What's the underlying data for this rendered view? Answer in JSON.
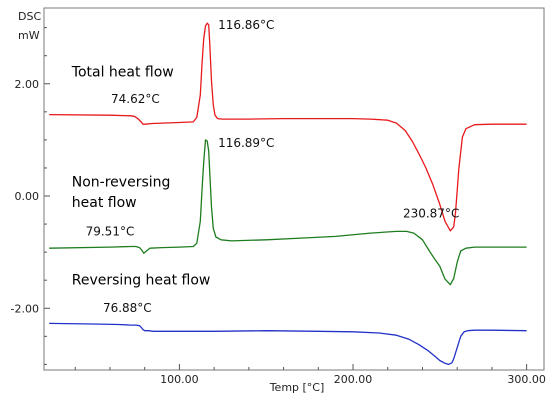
{
  "chart_data": {
    "type": "line",
    "y_unit_label": "DSC",
    "y_unit": "mW",
    "xlabel": "Temp  [°C]",
    "xlim": [
      22,
      310
    ],
    "ylim": [
      -3.1,
      3.35
    ],
    "xticks": [
      100,
      200,
      300
    ],
    "xtick_labels": [
      "100.00",
      "200.00",
      "300.00"
    ],
    "yticks": [
      2,
      0,
      -2
    ],
    "ytick_labels": [
      "2.00",
      "0.00",
      "-2.00"
    ],
    "grid": false,
    "series": [
      {
        "name": "Total heat flow",
        "color": "#e8191b",
        "x": [
          25,
          60,
          72,
          74,
          76,
          78,
          79,
          81,
          83,
          90,
          100,
          108,
          110,
          112,
          113,
          114,
          115,
          116,
          116.86,
          117.5,
          118.5,
          119.5,
          120.5,
          122,
          125,
          130,
          140,
          160,
          180,
          200,
          210,
          220,
          225,
          230,
          234,
          238,
          242,
          246,
          250,
          253,
          256,
          258,
          259,
          261,
          263,
          265,
          270,
          280,
          300
        ],
        "y": [
          1.45,
          1.44,
          1.43,
          1.42,
          1.38,
          1.32,
          1.28,
          1.28,
          1.29,
          1.3,
          1.31,
          1.32,
          1.4,
          1.8,
          2.35,
          2.8,
          3.03,
          3.08,
          3.05,
          2.7,
          2.05,
          1.62,
          1.44,
          1.38,
          1.37,
          1.37,
          1.37,
          1.38,
          1.38,
          1.38,
          1.37,
          1.35,
          1.3,
          1.17,
          0.98,
          0.75,
          0.5,
          0.2,
          -0.15,
          -0.45,
          -0.62,
          -0.55,
          -0.3,
          0.5,
          1.05,
          1.2,
          1.27,
          1.28,
          1.28
        ]
      },
      {
        "name": "Non-reversing heat flow",
        "color": "#1e7d1e",
        "x": [
          25,
          60,
          72,
          75,
          77,
          78.5,
          79.51,
          81,
          83,
          90,
          100,
          108,
          110,
          112,
          113,
          114,
          115,
          116,
          116.89,
          117.5,
          118.5,
          119.5,
          121,
          124,
          130,
          150,
          170,
          190,
          210,
          225,
          230.87,
          235,
          240,
          244,
          247,
          250,
          253,
          256,
          258,
          260,
          262,
          265,
          270,
          280,
          300
        ],
        "y": [
          -0.93,
          -0.91,
          -0.9,
          -0.9,
          -0.92,
          -0.97,
          -1.02,
          -0.98,
          -0.93,
          -0.92,
          -0.91,
          -0.9,
          -0.84,
          -0.45,
          0.1,
          0.6,
          1.0,
          0.98,
          0.8,
          0.4,
          -0.2,
          -0.58,
          -0.73,
          -0.78,
          -0.8,
          -0.78,
          -0.75,
          -0.72,
          -0.66,
          -0.63,
          -0.63,
          -0.66,
          -0.78,
          -0.98,
          -1.12,
          -1.25,
          -1.48,
          -1.58,
          -1.47,
          -1.18,
          -0.98,
          -0.93,
          -0.91,
          -0.91,
          -0.91
        ]
      },
      {
        "name": "Reversing heat flow",
        "color": "#2232c8",
        "x": [
          25,
          50,
          65,
          72,
          75,
          77,
          78,
          79,
          80,
          82,
          85,
          100,
          120,
          150,
          180,
          200,
          215,
          225,
          232,
          238,
          243,
          247,
          250,
          253,
          255,
          257,
          258,
          260,
          262,
          264,
          266,
          270,
          280,
          300
        ],
        "y": [
          -2.27,
          -2.28,
          -2.29,
          -2.3,
          -2.3,
          -2.31,
          -2.34,
          -2.38,
          -2.4,
          -2.4,
          -2.41,
          -2.41,
          -2.41,
          -2.4,
          -2.41,
          -2.42,
          -2.44,
          -2.48,
          -2.55,
          -2.65,
          -2.75,
          -2.85,
          -2.93,
          -2.98,
          -3.0,
          -2.97,
          -2.9,
          -2.7,
          -2.5,
          -2.42,
          -2.4,
          -2.39,
          -2.39,
          -2.4
        ]
      }
    ],
    "series_labels": [
      {
        "text": "Total heat flow",
        "x": 38,
        "y": 2.13
      },
      {
        "text": "Non-reversing",
        "x": 38,
        "y": 0.17
      },
      {
        "text": "heat flow",
        "x": 38,
        "y": -0.2
      },
      {
        "text": "Reversing heat flow",
        "x": 38,
        "y": -1.58
      }
    ],
    "annotations": [
      {
        "text": "116.86°C",
        "x": 138.5,
        "y": 2.98,
        "anchor": "middle"
      },
      {
        "text": "74.62°C",
        "x": 74.62,
        "y": 1.66,
        "anchor": "middle"
      },
      {
        "text": "116.89°C",
        "x": 138.5,
        "y": 0.87,
        "anchor": "middle"
      },
      {
        "text": "79.51°C",
        "x": 60,
        "y": -0.7,
        "anchor": "middle"
      },
      {
        "text": "230.87°C",
        "x": 245,
        "y": -0.38,
        "anchor": "middle"
      },
      {
        "text": "76.88°C",
        "x": 70,
        "y": -2.07,
        "anchor": "middle"
      }
    ]
  }
}
